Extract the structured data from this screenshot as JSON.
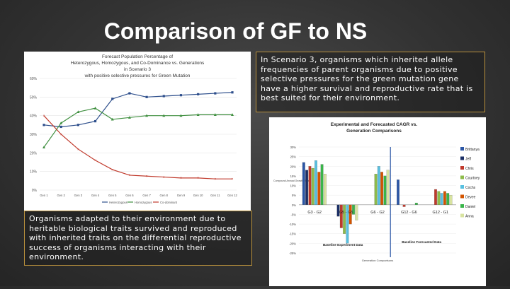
{
  "slide": {
    "title": "Comparison of GF to NS",
    "text_top": "In Scenario 3, organisms which inherited allele frequencies of parent organisms due to positive selective pressures for the green mutation gene have a higher survival and reproductive rate that is best suited for their environment.",
    "text_bottom": "Organisms adapted to their environment due to heritable biological traits survived and reproduced with inherited traits on the differential reproductive success of organisms interacting with their environment."
  },
  "chart_data": [
    {
      "type": "line",
      "title": "Forecast Population Percentage of Heterozygous, Homozygous, and Co-Dominance vs. Generations in Scenario 3 with positive selective pressures for Green Mutation",
      "title_lines": [
        "Forecast Population Percentage of",
        "Heterozygous, Homozygous, and Co-Dominance vs. Generations",
        "in Scenario 3",
        "with positive selective pressures for Green Mutation"
      ],
      "categories": [
        "Gen 1",
        "Gen 2",
        "Gen 3",
        "Gen 4",
        "Gen 5",
        "Gen 6",
        "Gen 7",
        "Gen 8",
        "Gen 9",
        "Gen 10",
        "Gen 11",
        "Gen 12"
      ],
      "y_ticks": [
        "0%",
        "10%",
        "20%",
        "30%",
        "40%",
        "50%",
        "60%"
      ],
      "ylim": [
        0,
        60
      ],
      "series": [
        {
          "name": "Heterozygous",
          "color": "#2e4f8c",
          "values": [
            35,
            34,
            35,
            37,
            49,
            52,
            50,
            50.5,
            51,
            51.5,
            52,
            52.5
          ]
        },
        {
          "name": "Homozygous",
          "color": "#3f8f3f",
          "values": [
            23,
            36,
            42,
            44,
            38,
            39,
            40,
            40,
            40,
            40.5,
            40.5,
            40.5
          ]
        },
        {
          "name": "Co-dominant",
          "color": "#c0392b",
          "values": [
            40,
            30,
            22,
            16,
            11,
            8,
            7.5,
            7,
            6.5,
            6.5,
            6,
            6
          ]
        }
      ]
    },
    {
      "type": "bar",
      "title": "Experimental and Forecasted CAGR vs. Generation Comparisons",
      "title_lines": [
        "Experimental and Forecasted CAGR vs.",
        "Generation Comparisons"
      ],
      "categories": [
        "G3 - G2",
        "G5 - G5",
        "G6 - G2",
        "G12 - G6",
        "G12 - G1"
      ],
      "y_ticks": [
        "30%",
        "25%",
        "20%",
        "15%",
        "10%",
        "5%",
        "0%",
        "-5%",
        "-10%",
        "-15%",
        "-20%",
        "-25%"
      ],
      "ylim": [
        -25,
        30
      ],
      "ylabel": "Compound Annual Growth Rate",
      "xlabel": "Generation Comparisons",
      "annotations": [
        "Baseline Experiment Data",
        "Baseline Forecasted Data"
      ],
      "series": [
        {
          "name": "Brittanya",
          "color": "#2b56a6",
          "values": [
            22,
            0,
            0,
            13,
            0
          ]
        },
        {
          "name": "Jeff",
          "color": "#1b2f66",
          "values": [
            18,
            -6,
            0,
            0,
            0
          ]
        },
        {
          "name": "Chris",
          "color": "#c0392b",
          "values": [
            20,
            -12,
            0,
            -1,
            8
          ]
        },
        {
          "name": "Courtney",
          "color": "#8dbb4a",
          "values": [
            19,
            -15,
            16,
            0,
            7
          ]
        },
        {
          "name": "Cochs",
          "color": "#58c0e0",
          "values": [
            23,
            -20,
            20,
            0,
            6
          ]
        },
        {
          "name": "Devee",
          "color": "#d35400",
          "values": [
            17,
            -10,
            17,
            0,
            7
          ]
        },
        {
          "name": "Daniel",
          "color": "#39b54a",
          "values": [
            21,
            -5,
            15,
            1,
            6
          ]
        },
        {
          "name": "Anna",
          "color": "#d8e3a0",
          "values": [
            16,
            -8,
            18,
            0,
            5
          ]
        }
      ]
    }
  ]
}
